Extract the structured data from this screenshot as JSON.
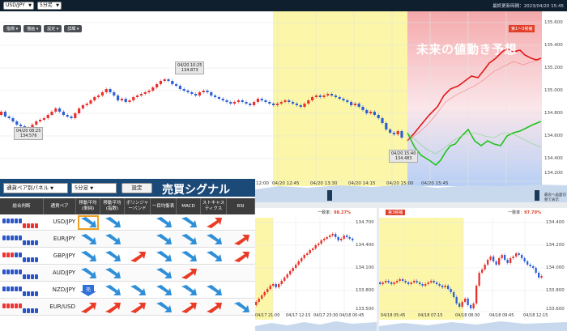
{
  "toolbar": {
    "pair_select": "USD/JPY",
    "interval_select": "5分足",
    "updated_label": "最終更新時間：2023/04/20 15:45",
    "indicator_buttons": [
      "指標 ▾",
      "描画 ▾",
      "設定 ▾",
      "詳細 ▾"
    ]
  },
  "main_chart": {
    "future_title": "未来の値動き予想",
    "future_badge": "第1～3候補",
    "y_ticks": [
      "135.600",
      "135.400",
      "135.200",
      "135.000",
      "134.800",
      "134.600",
      "134.400",
      "134.200"
    ],
    "x_ticks": [
      "12:00",
      "04/20 12:45",
      "04/20 13:30",
      "04/20 14:15",
      "04/20 15:00",
      "04/20 15:45"
    ],
    "callouts": [
      {
        "time": "04/20 08:25",
        "price": "134.576"
      },
      {
        "time": "04/20 10:25",
        "price": "134.873"
      },
      {
        "time": "04/20 15:40",
        "price": "134.483"
      }
    ],
    "hide_button": "最良へ画面切替で表示"
  },
  "signal_panel": {
    "pair_select": "通貨ペア別パネル",
    "interval_select": "5分足",
    "set_button": "設定",
    "title": "売買シグナル",
    "columns": [
      "総合判断",
      "通貨ペア",
      "移動平均(単純)",
      "移動平均(指数)",
      "ボリンジャーバンド",
      "一目均衡表",
      "MACD",
      "ストキャスティクス",
      "RSI"
    ],
    "rows": [
      {
        "pair": "USD/JPY",
        "gauge": "bbbbbrrrr",
        "signals": [
          "down",
          "down",
          "",
          "down",
          "down",
          "up",
          ""
        ]
      },
      {
        "pair": "EUR/JPY",
        "gauge": "bbbbbbbbb",
        "signals": [
          "down",
          "down",
          "",
          "down",
          "down",
          "down",
          "up"
        ]
      },
      {
        "pair": "GBP/JPY",
        "gauge": "rrrbbbbbb",
        "signals": [
          "down",
          "down",
          "up",
          "down",
          "down",
          "down",
          "up"
        ]
      },
      {
        "pair": "AUD/JPY",
        "gauge": "bbbbbbbbb",
        "signals": [
          "down",
          "down",
          "",
          "down",
          "up",
          "",
          ""
        ]
      },
      {
        "pair": "NZD/JPY",
        "gauge": "bbbbbbbbb",
        "signals": [
          "sell",
          "down",
          "down",
          "down",
          "down",
          "down",
          ""
        ]
      },
      {
        "pair": "EUR/USD",
        "gauge": "rrrrrbbbb",
        "signals": [
          "up",
          "up",
          "up",
          "down",
          "up",
          "up",
          "down"
        ]
      }
    ]
  },
  "sub_charts": [
    {
      "label": "",
      "rate_prefix": "一致率：",
      "rate": "",
      "y_ticks": [
        "134.700",
        "134.400",
        "134.100",
        "133.800",
        "133.500"
      ],
      "x_ticks": [
        "04/17 21:00",
        "04/17 12:15",
        "04/17 23:30",
        "04/18 00:45"
      ]
    },
    {
      "label": "第3候補",
      "rate_prefix": "一致率：",
      "rate": "97.70%",
      "y_ticks": [
        "134.400",
        "134.200",
        "134.000",
        "133.800",
        "133.600"
      ],
      "x_ticks": [
        "04/18 05:45",
        "04/18 07:15",
        "04/18 08:30",
        "04/18 09:45",
        "04/18 12:15"
      ]
    }
  ],
  "sub_chart_1_rate": "98.27%",
  "colors": {
    "header_bg": "#0f1f2d",
    "panel_header": "#1b4a78",
    "highlight_yellow": "#fbf6a8",
    "future_red": "#f4a9ab",
    "future_blue": "#b7cff5",
    "up_candle": "#e8322b",
    "down_candle": "#2d5fd6",
    "forecast_red": "#e31818",
    "forecast_green": "#22c11c"
  }
}
